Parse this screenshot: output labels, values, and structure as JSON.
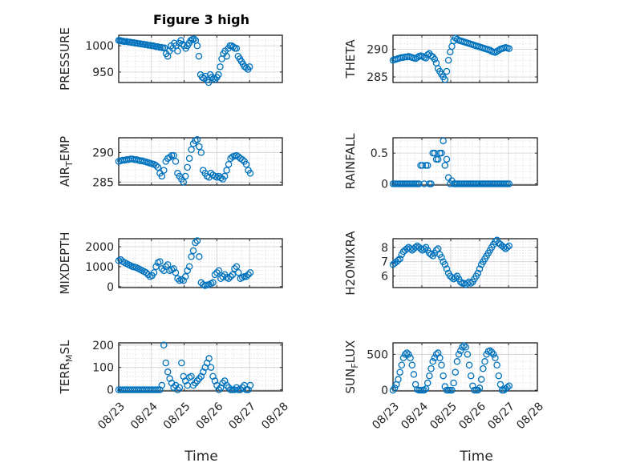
{
  "title": "Figure 3 high",
  "xlabel": "Time",
  "x_ticks": [
    "08/23",
    "08/24",
    "08/25",
    "08/26",
    "08/27",
    "08/28"
  ],
  "marker_color": "#0072bd",
  "chart_data": [
    {
      "type": "scatter",
      "panel": "top-left",
      "ylabel": "PRESSURE",
      "ylabel_sub": "",
      "ylabel_tail": "",
      "ylim": [
        930,
        1020
      ],
      "yticks": [
        950,
        1000
      ],
      "xlim_days": [
        0,
        5
      ],
      "x": [
        0,
        0.04,
        0.08,
        0.12,
        0.16,
        0.2,
        0.25,
        0.3,
        0.35,
        0.4,
        0.45,
        0.5,
        0.55,
        0.6,
        0.65,
        0.7,
        0.75,
        0.8,
        0.85,
        0.9,
        0.95,
        1.0,
        1.05,
        1.1,
        1.15,
        1.2,
        1.25,
        1.3,
        1.35,
        1.4,
        1.45,
        1.5,
        1.55,
        1.6,
        1.65,
        1.7,
        1.75,
        1.8,
        1.85,
        1.9,
        1.95,
        2.0,
        2.05,
        2.1,
        2.15,
        2.2,
        2.25,
        2.3,
        2.35,
        2.4,
        2.45,
        2.5,
        2.55,
        2.6,
        2.65,
        2.7,
        2.75,
        2.8,
        2.85,
        2.9,
        2.95,
        3.0,
        3.05,
        3.1,
        3.15,
        3.2,
        3.25,
        3.3,
        3.35,
        3.4,
        3.45,
        3.5,
        3.55,
        3.6,
        3.65,
        3.7,
        3.75,
        3.8,
        3.85,
        3.9,
        3.95,
        4.0
      ],
      "y": [
        1010,
        1010,
        1009,
        1009,
        1008,
        1008,
        1008,
        1007,
        1007,
        1006,
        1006,
        1005,
        1005,
        1004,
        1004,
        1003,
        1003,
        1002,
        1002,
        1001,
        1001,
        1000,
        1000,
        999,
        998,
        998,
        997,
        997,
        996,
        996,
        985,
        980,
        990,
        1000,
        995,
        1005,
        1000,
        990,
        1005,
        1010,
        1003,
        1000,
        995,
        1000,
        1005,
        1010,
        1012,
        1013,
        1010,
        1000,
        980,
        945,
        940,
        938,
        942,
        935,
        930,
        945,
        940,
        938,
        936,
        940,
        945,
        960,
        975,
        985,
        990,
        980,
        995,
        1000,
        1000,
        998,
        995,
        995,
        980,
        975,
        970,
        965,
        960,
        958,
        955,
        960
      ]
    },
    {
      "type": "scatter",
      "panel": "top-right",
      "ylabel": "THETA",
      "ylabel_sub": "",
      "ylabel_tail": "",
      "ylim": [
        284,
        292.5
      ],
      "yticks": [
        285,
        290
      ],
      "xlim_days": [
        0,
        5
      ],
      "x": [
        0,
        0.06,
        0.12,
        0.18,
        0.24,
        0.3,
        0.36,
        0.42,
        0.48,
        0.54,
        0.6,
        0.66,
        0.72,
        0.78,
        0.84,
        0.9,
        0.96,
        1.02,
        1.08,
        1.14,
        1.2,
        1.26,
        1.32,
        1.38,
        1.44,
        1.5,
        1.56,
        1.62,
        1.68,
        1.74,
        1.8,
        1.86,
        1.92,
        1.98,
        2.04,
        2.1,
        2.16,
        2.22,
        2.28,
        2.34,
        2.4,
        2.46,
        2.52,
        2.58,
        2.64,
        2.7,
        2.76,
        2.82,
        2.88,
        2.94,
        3.0,
        3.06,
        3.12,
        3.18,
        3.24,
        3.3,
        3.36,
        3.42,
        3.48,
        3.54,
        3.6,
        3.66,
        3.72,
        3.78,
        3.84,
        3.9,
        3.96,
        4.02
      ],
      "y": [
        288,
        288.1,
        288.2,
        288.3,
        288.4,
        288.5,
        288.5,
        288.6,
        288.6,
        288.7,
        288.6,
        288.5,
        288.4,
        288.3,
        288.5,
        288.7,
        288.8,
        288.7,
        288.5,
        288.4,
        289,
        289.2,
        288.8,
        288.6,
        288.2,
        287.5,
        286.5,
        286,
        285.5,
        285,
        284.5,
        286,
        288,
        289.5,
        290.5,
        291.5,
        292,
        291.8,
        291.6,
        291.5,
        291.4,
        291.3,
        291.2,
        291.1,
        291,
        290.9,
        290.8,
        290.7,
        290.6,
        290.5,
        290.4,
        290.3,
        290.2,
        290.1,
        290,
        289.9,
        289.8,
        289.6,
        289.5,
        289.4,
        289.6,
        289.8,
        290,
        290.1,
        290.2,
        290.3,
        290.2,
        290.1
      ]
    },
    {
      "type": "scatter",
      "panel": "row2-left",
      "ylabel": "AIR",
      "ylabel_sub": "T",
      "ylabel_tail": "EMP",
      "ylim": [
        284.5,
        292.5
      ],
      "yticks": [
        285,
        290
      ],
      "xlim_days": [
        0,
        5
      ],
      "x": [
        0,
        0.06,
        0.12,
        0.18,
        0.24,
        0.3,
        0.36,
        0.42,
        0.48,
        0.54,
        0.6,
        0.66,
        0.72,
        0.78,
        0.84,
        0.9,
        0.96,
        1.02,
        1.08,
        1.14,
        1.2,
        1.26,
        1.32,
        1.38,
        1.44,
        1.5,
        1.56,
        1.62,
        1.68,
        1.74,
        1.8,
        1.86,
        1.92,
        1.98,
        2.04,
        2.1,
        2.16,
        2.22,
        2.28,
        2.34,
        2.4,
        2.46,
        2.52,
        2.58,
        2.64,
        2.7,
        2.76,
        2.82,
        2.88,
        2.94,
        3.0,
        3.06,
        3.12,
        3.18,
        3.24,
        3.3,
        3.36,
        3.42,
        3.48,
        3.54,
        3.6,
        3.66,
        3.72,
        3.78,
        3.84,
        3.9,
        3.96,
        4.02
      ],
      "y": [
        288.5,
        288.6,
        288.7,
        288.7,
        288.8,
        288.8,
        288.9,
        288.9,
        288.8,
        288.8,
        288.7,
        288.6,
        288.6,
        288.5,
        288.4,
        288.3,
        288.2,
        288.1,
        288,
        287.8,
        287.5,
        286.5,
        286,
        287,
        288.5,
        289,
        289.2,
        289.5,
        289.5,
        288.5,
        286.5,
        286,
        285.5,
        285,
        286,
        287.5,
        289,
        290.5,
        291.5,
        292,
        292.2,
        291,
        290,
        287,
        286.5,
        286,
        285.8,
        286.5,
        286.2,
        286,
        285.8,
        286,
        285.7,
        285.5,
        286,
        287,
        288,
        289,
        289.3,
        289.4,
        289.5,
        289.3,
        289,
        288.8,
        288.5,
        288,
        287,
        286.5
      ]
    },
    {
      "type": "scatter",
      "panel": "row2-right",
      "ylabel": "RAINFALL",
      "ylabel_sub": "",
      "ylabel_tail": "",
      "ylim": [
        -0.02,
        0.75
      ],
      "yticks": [
        0,
        0.5
      ],
      "xlim_days": [
        0,
        5
      ],
      "x": [
        0,
        0.06,
        0.12,
        0.18,
        0.24,
        0.3,
        0.36,
        0.42,
        0.48,
        0.54,
        0.6,
        0.66,
        0.72,
        0.78,
        0.84,
        0.9,
        0.96,
        1.02,
        1.08,
        1.14,
        1.2,
        1.26,
        1.32,
        1.38,
        1.44,
        1.5,
        1.56,
        1.62,
        1.68,
        1.74,
        1.8,
        1.86,
        1.92,
        1.98,
        2.04,
        2.1,
        2.16,
        2.22,
        2.28,
        2.34,
        2.4,
        2.46,
        2.52,
        2.58,
        2.64,
        2.7,
        2.76,
        2.82,
        2.88,
        2.94,
        3.0,
        3.06,
        3.12,
        3.18,
        3.24,
        3.3,
        3.36,
        3.42,
        3.48,
        3.54,
        3.6,
        3.66,
        3.72,
        3.78,
        3.84,
        3.9,
        3.96,
        4.02
      ],
      "y": [
        0,
        0,
        0,
        0,
        0,
        0,
        0,
        0,
        0,
        0,
        0,
        0,
        0,
        0,
        0,
        0,
        0.3,
        0.3,
        0,
        0.3,
        0.3,
        0,
        0,
        0.5,
        0.5,
        0.4,
        0.4,
        0.5,
        0.5,
        0.7,
        0.3,
        0.4,
        0.1,
        0,
        0.05,
        0,
        0,
        0,
        0,
        0,
        0,
        0,
        0,
        0,
        0,
        0,
        0,
        0,
        0,
        0,
        0,
        0,
        0,
        0,
        0,
        0,
        0,
        0,
        0,
        0,
        0,
        0,
        0,
        0,
        0,
        0,
        0,
        0
      ]
    },
    {
      "type": "scatter",
      "panel": "row3-left",
      "ylabel": "MIXDEPTH",
      "ylabel_sub": "",
      "ylabel_tail": "",
      "ylim": [
        -50,
        2400
      ],
      "yticks": [
        0,
        1000,
        2000
      ],
      "xlim_days": [
        0,
        5
      ],
      "x": [
        0,
        0.06,
        0.12,
        0.18,
        0.24,
        0.3,
        0.36,
        0.42,
        0.48,
        0.54,
        0.6,
        0.66,
        0.72,
        0.78,
        0.84,
        0.9,
        0.96,
        1.02,
        1.08,
        1.14,
        1.2,
        1.26,
        1.32,
        1.38,
        1.44,
        1.5,
        1.56,
        1.62,
        1.68,
        1.74,
        1.8,
        1.86,
        1.92,
        1.98,
        2.04,
        2.1,
        2.16,
        2.22,
        2.28,
        2.34,
        2.4,
        2.46,
        2.52,
        2.58,
        2.64,
        2.7,
        2.76,
        2.82,
        2.88,
        2.94,
        3.0,
        3.06,
        3.12,
        3.18,
        3.24,
        3.3,
        3.36,
        3.42,
        3.48,
        3.54,
        3.6,
        3.66,
        3.72,
        3.78,
        3.84,
        3.9,
        3.96,
        4.02
      ],
      "y": [
        1300,
        1350,
        1250,
        1200,
        1150,
        1100,
        1050,
        1000,
        980,
        950,
        900,
        850,
        800,
        750,
        700,
        600,
        500,
        550,
        700,
        1000,
        1200,
        1250,
        900,
        800,
        1000,
        1100,
        800,
        850,
        900,
        700,
        400,
        300,
        350,
        300,
        500,
        800,
        1000,
        1500,
        1800,
        2200,
        2300,
        1500,
        200,
        100,
        50,
        80,
        100,
        150,
        200,
        600,
        700,
        800,
        400,
        500,
        600,
        450,
        400,
        500,
        600,
        900,
        1000,
        700,
        400,
        450,
        500,
        500,
        600,
        700
      ]
    },
    {
      "type": "scatter",
      "panel": "row3-right",
      "ylabel": "H2OMIXRA",
      "ylabel_sub": "",
      "ylabel_tail": "",
      "ylim": [
        5.2,
        8.6
      ],
      "yticks": [
        6,
        7,
        8
      ],
      "xlim_days": [
        0,
        5
      ],
      "x": [
        0,
        0.06,
        0.12,
        0.18,
        0.24,
        0.3,
        0.36,
        0.42,
        0.48,
        0.54,
        0.6,
        0.66,
        0.72,
        0.78,
        0.84,
        0.9,
        0.96,
        1.02,
        1.08,
        1.14,
        1.2,
        1.26,
        1.32,
        1.38,
        1.44,
        1.5,
        1.56,
        1.62,
        1.68,
        1.74,
        1.8,
        1.86,
        1.92,
        1.98,
        2.04,
        2.1,
        2.16,
        2.22,
        2.28,
        2.34,
        2.4,
        2.46,
        2.52,
        2.58,
        2.64,
        2.7,
        2.76,
        2.82,
        2.88,
        2.94,
        3.0,
        3.06,
        3.12,
        3.18,
        3.24,
        3.3,
        3.36,
        3.42,
        3.48,
        3.54,
        3.6,
        3.66,
        3.72,
        3.78,
        3.84,
        3.9,
        3.96,
        4.02
      ],
      "y": [
        6.8,
        6.9,
        7.0,
        7.1,
        7.2,
        7.5,
        7.7,
        7.8,
        7.9,
        8.0,
        7.9,
        7.8,
        7.9,
        8.0,
        8.1,
        8.0,
        7.9,
        7.8,
        7.9,
        8.0,
        7.8,
        7.6,
        7.5,
        7.4,
        7.6,
        7.8,
        7.9,
        7.5,
        7.3,
        7.0,
        6.8,
        6.5,
        6.2,
        6.0,
        5.9,
        5.8,
        5.9,
        6.0,
        5.8,
        5.6,
        5.5,
        5.5,
        5.4,
        5.5,
        5.6,
        5.5,
        5.6,
        5.8,
        6.0,
        6.2,
        6.5,
        6.8,
        7.0,
        7.2,
        7.4,
        7.6,
        7.8,
        8.0,
        8.2,
        8.4,
        8.5,
        8.3,
        8.2,
        8.1,
        8.0,
        7.9,
        8.0,
        8.1
      ]
    },
    {
      "type": "scatter",
      "panel": "bottom-left",
      "ylabel": "TERR",
      "ylabel_sub": "M",
      "ylabel_tail": "SL",
      "ylim": [
        -5,
        210
      ],
      "yticks": [
        0,
        100,
        200
      ],
      "xlim_days": [
        0,
        5
      ],
      "x": [
        0,
        0.06,
        0.12,
        0.18,
        0.24,
        0.3,
        0.36,
        0.42,
        0.48,
        0.54,
        0.6,
        0.66,
        0.72,
        0.78,
        0.84,
        0.9,
        0.96,
        1.02,
        1.08,
        1.14,
        1.2,
        1.26,
        1.32,
        1.38,
        1.44,
        1.5,
        1.56,
        1.62,
        1.68,
        1.74,
        1.8,
        1.86,
        1.92,
        1.98,
        2.04,
        2.1,
        2.16,
        2.22,
        2.28,
        2.34,
        2.4,
        2.46,
        2.52,
        2.58,
        2.64,
        2.7,
        2.76,
        2.82,
        2.88,
        2.94,
        3.0,
        3.06,
        3.12,
        3.18,
        3.24,
        3.3,
        3.36,
        3.42,
        3.48,
        3.54,
        3.6,
        3.66,
        3.72,
        3.78,
        3.84,
        3.9,
        3.96,
        4.02
      ],
      "y": [
        0,
        0,
        0,
        0,
        0,
        0,
        0,
        0,
        0,
        0,
        0,
        0,
        0,
        0,
        0,
        0,
        0,
        0,
        0,
        0,
        0,
        0,
        20,
        200,
        120,
        80,
        50,
        30,
        10,
        20,
        0,
        10,
        120,
        60,
        40,
        20,
        55,
        60,
        20,
        30,
        40,
        50,
        60,
        80,
        100,
        120,
        140,
        100,
        60,
        40,
        20,
        0,
        10,
        30,
        40,
        20,
        10,
        0,
        0,
        0,
        10,
        0,
        0,
        10,
        20,
        0,
        0,
        20
      ]
    },
    {
      "type": "scatter",
      "panel": "bottom-right",
      "ylabel": "SUN",
      "ylabel_sub": "F",
      "ylabel_tail": "LUX",
      "ylim": [
        -10,
        660
      ],
      "yticks": [
        0,
        500
      ],
      "xlim_days": [
        0,
        5
      ],
      "x": [
        0,
        0.06,
        0.12,
        0.18,
        0.24,
        0.3,
        0.36,
        0.42,
        0.48,
        0.54,
        0.6,
        0.66,
        0.72,
        0.78,
        0.84,
        0.9,
        0.96,
        1.02,
        1.08,
        1.14,
        1.2,
        1.26,
        1.32,
        1.38,
        1.44,
        1.5,
        1.56,
        1.62,
        1.68,
        1.74,
        1.8,
        1.86,
        1.92,
        1.98,
        2.04,
        2.1,
        2.16,
        2.22,
        2.28,
        2.34,
        2.4,
        2.46,
        2.52,
        2.58,
        2.64,
        2.7,
        2.76,
        2.82,
        2.88,
        2.94,
        3.0,
        3.06,
        3.12,
        3.18,
        3.24,
        3.3,
        3.36,
        3.42,
        3.48,
        3.54,
        3.6,
        3.66,
        3.72,
        3.78,
        3.84,
        3.9,
        3.96,
        4.02
      ],
      "y": [
        0,
        30,
        80,
        150,
        250,
        350,
        450,
        500,
        520,
        500,
        450,
        350,
        220,
        80,
        10,
        0,
        0,
        0,
        0,
        20,
        100,
        200,
        300,
        400,
        450,
        500,
        520,
        450,
        350,
        200,
        50,
        0,
        0,
        0,
        0,
        100,
        250,
        400,
        500,
        550,
        600,
        620,
        600,
        500,
        350,
        200,
        60,
        0,
        0,
        0,
        30,
        150,
        300,
        400,
        500,
        540,
        550,
        530,
        500,
        450,
        350,
        200,
        80,
        0,
        0,
        20,
        40,
        60
      ]
    }
  ]
}
